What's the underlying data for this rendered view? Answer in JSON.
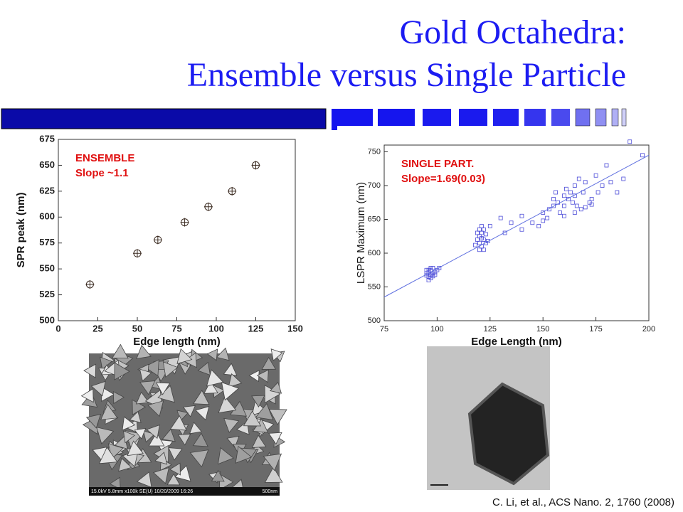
{
  "slide": {
    "title": [
      "Gold Octahedra:",
      "Ensemble versus Single Particle"
    ],
    "sem_caption": [
      "15.0kV 5.8mm x100k SE(U) 10/20/2009 16:26",
      "500nm"
    ],
    "citation": "C. Li, et al., ACS Nano. 2, 1760 (2008)"
  },
  "chart_data": [
    {
      "type": "scatter",
      "annotation": [
        "ENSEMBLE",
        "Slope ~1.1"
      ],
      "annotation_color": "#e01010",
      "xlabel": "Edge length (nm)",
      "ylabel": "SPR peak (nm)",
      "xlim": [
        0,
        150
      ],
      "xticks": [
        0,
        25,
        50,
        75,
        100,
        125,
        150
      ],
      "ylim": [
        500,
        675
      ],
      "yticks": [
        500,
        525,
        550,
        575,
        600,
        625,
        650,
        675
      ],
      "series": [
        {
          "color": "#3a2a20",
          "marker": "circle-plus",
          "x": [
            20,
            50,
            63,
            80,
            95,
            110,
            125
          ],
          "values": [
            535,
            565,
            578,
            595,
            610,
            625,
            650
          ]
        }
      ]
    },
    {
      "type": "scatter",
      "annotation": [
        "SINGLE PART.",
        "Slope=1.69(0.03)"
      ],
      "annotation_color": "#e01010",
      "xlabel": "Edge Length (nm)",
      "ylabel": "LSPR Maximum (nm)",
      "xlim": [
        75,
        200
      ],
      "xticks": [
        75,
        100,
        125,
        150,
        175,
        200
      ],
      "ylim": [
        500,
        760
      ],
      "yticks": [
        500,
        550,
        600,
        650,
        700,
        750
      ],
      "series": [
        {
          "color": "#4a4ad8",
          "marker": "square",
          "x": [
            95,
            95,
            96,
            96,
            97,
            97,
            98,
            98,
            96,
            97,
            99,
            98,
            95,
            100,
            101,
            97,
            99,
            96,
            119,
            120,
            120,
            121,
            121,
            122,
            122,
            120,
            123,
            119,
            121,
            122,
            120,
            118,
            124,
            121,
            123,
            125,
            130,
            132,
            135,
            140,
            140,
            145,
            148,
            150,
            150,
            152,
            153,
            155,
            155,
            156,
            157,
            158,
            160,
            160,
            161,
            162,
            163,
            164,
            165,
            165,
            166,
            167,
            168,
            169,
            170,
            172,
            173,
            175,
            176,
            178,
            180,
            182,
            185,
            188,
            191,
            197,
            160,
            165,
            170,
            173
          ],
          "values": [
            570,
            575,
            565,
            572,
            568,
            575,
            570,
            578,
            560,
            563,
            572,
            566,
            567,
            575,
            578,
            578,
            568,
            575,
            620,
            615,
            625,
            630,
            610,
            620,
            635,
            605,
            615,
            630,
            622,
            605,
            635,
            612,
            618,
            640,
            628,
            640,
            652,
            630,
            645,
            655,
            635,
            645,
            640,
            648,
            660,
            652,
            665,
            670,
            680,
            690,
            675,
            660,
            685,
            670,
            695,
            680,
            690,
            675,
            700,
            685,
            670,
            710,
            665,
            690,
            705,
            675,
            680,
            715,
            690,
            700,
            730,
            705,
            690,
            710,
            765,
            745,
            655,
            660,
            668,
            672
          ]
        },
        {
          "color": "#6070e0",
          "marker": "line",
          "x": [
            75,
            200
          ],
          "values": [
            535,
            745
          ]
        }
      ]
    }
  ]
}
